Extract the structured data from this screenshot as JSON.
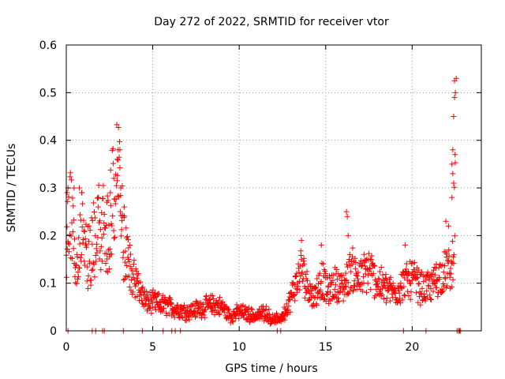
{
  "chart_data": {
    "type": "scatter",
    "title": "Day 272 of 2022, SRMTID for receiver vtor",
    "xlabel": "GPS time / hours",
    "ylabel": "SRMTID / TECUs",
    "xlim": [
      0,
      24
    ],
    "ylim": [
      0,
      0.6
    ],
    "xticks": [
      0,
      5,
      10,
      15,
      20
    ],
    "xtick_labels": [
      "0",
      "5",
      "10",
      "15",
      "20"
    ],
    "yticks": [
      0,
      0.1,
      0.2,
      0.3,
      0.4,
      0.5,
      0.6
    ],
    "ytick_labels": [
      "0",
      "0.1",
      "0.2",
      "0.3",
      "0.4",
      "0.5",
      "0.6"
    ],
    "grid": true,
    "marker": "+",
    "series": [
      {
        "name": "SRMTID",
        "color": "#ff0000",
        "profile": [
          [
            0.0,
            0.13
          ],
          [
            0.1,
            0.26
          ],
          [
            0.3,
            0.22
          ],
          [
            0.5,
            0.16
          ],
          [
            0.7,
            0.14
          ],
          [
            0.9,
            0.22
          ],
          [
            1.1,
            0.18
          ],
          [
            1.3,
            0.16
          ],
          [
            1.6,
            0.19
          ],
          [
            1.8,
            0.23
          ],
          [
            2.1,
            0.24
          ],
          [
            2.4,
            0.21
          ],
          [
            2.7,
            0.27
          ],
          [
            2.9,
            0.32
          ],
          [
            3.05,
            0.34
          ],
          [
            3.2,
            0.23
          ],
          [
            3.4,
            0.15
          ],
          [
            3.7,
            0.13
          ],
          [
            3.9,
            0.11
          ],
          [
            4.3,
            0.08
          ],
          [
            4.6,
            0.06
          ],
          [
            5.0,
            0.06
          ],
          [
            5.5,
            0.055
          ],
          [
            6.0,
            0.05
          ],
          [
            6.5,
            0.045
          ],
          [
            7.0,
            0.04
          ],
          [
            7.5,
            0.045
          ],
          [
            8.0,
            0.05
          ],
          [
            8.5,
            0.055
          ],
          [
            9.0,
            0.05
          ],
          [
            9.5,
            0.03
          ],
          [
            10.0,
            0.04
          ],
          [
            10.5,
            0.035
          ],
          [
            11.0,
            0.03
          ],
          [
            11.5,
            0.04
          ],
          [
            12.0,
            0.02
          ],
          [
            12.5,
            0.03
          ],
          [
            12.8,
            0.05
          ],
          [
            13.2,
            0.09
          ],
          [
            13.6,
            0.13
          ],
          [
            13.9,
            0.1
          ],
          [
            14.3,
            0.07
          ],
          [
            14.8,
            0.11
          ],
          [
            15.1,
            0.08
          ],
          [
            15.6,
            0.1
          ],
          [
            16.0,
            0.09
          ],
          [
            16.5,
            0.13
          ],
          [
            17.0,
            0.11
          ],
          [
            17.5,
            0.13
          ],
          [
            18.0,
            0.1
          ],
          [
            18.5,
            0.09
          ],
          [
            19.0,
            0.08
          ],
          [
            19.5,
            0.1
          ],
          [
            20.0,
            0.11
          ],
          [
            20.5,
            0.09
          ],
          [
            21.0,
            0.09
          ],
          [
            21.5,
            0.11
          ],
          [
            22.0,
            0.13
          ],
          [
            22.3,
            0.12
          ],
          [
            22.4,
            0.2
          ],
          [
            22.5,
            0.3
          ]
        ],
        "spikes": [
          [
            0.05,
            0.29
          ],
          [
            0.1,
            0.3
          ],
          [
            0.45,
            0.3
          ],
          [
            0.75,
            0.3
          ],
          [
            0.9,
            0.29
          ],
          [
            1.85,
            0.28
          ],
          [
            2.35,
            0.27
          ],
          [
            2.55,
            0.29
          ],
          [
            2.75,
            0.32
          ],
          [
            2.95,
            0.36
          ],
          [
            3.0,
            0.38
          ],
          [
            3.1,
            0.38
          ],
          [
            3.15,
            0.3
          ],
          [
            3.35,
            0.26
          ],
          [
            3.6,
            0.15
          ],
          [
            16.2,
            0.25
          ],
          [
            16.25,
            0.24
          ],
          [
            16.3,
            0.2
          ],
          [
            13.6,
            0.19
          ],
          [
            14.75,
            0.18
          ],
          [
            19.6,
            0.18
          ],
          [
            21.4,
            0.14
          ],
          [
            21.95,
            0.23
          ],
          [
            22.1,
            0.22
          ],
          [
            22.3,
            0.35
          ],
          [
            22.35,
            0.38
          ],
          [
            22.4,
            0.45
          ],
          [
            22.45,
            0.49
          ],
          [
            22.45,
            0.525
          ],
          [
            22.55,
            0.53
          ],
          [
            22.5,
            0.5
          ],
          [
            22.35,
            0.33
          ],
          [
            22.4,
            0.31
          ],
          [
            22.3,
            0.28
          ]
        ],
        "zeros": [
          0.1,
          1.5,
          1.7,
          2.1,
          2.2,
          3.3,
          4.4,
          5.6,
          6.1,
          6.3,
          6.6,
          12.2,
          12.4,
          19.5,
          20.8,
          22.6,
          22.7,
          22.75,
          22.8
        ]
      }
    ]
  }
}
